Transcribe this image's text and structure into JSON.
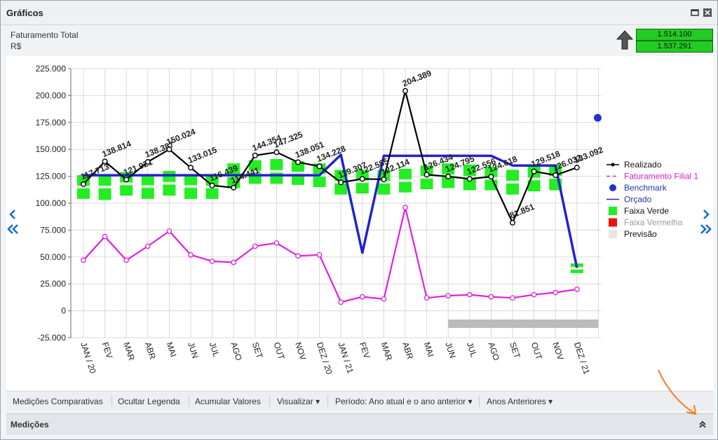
{
  "window": {
    "title": "Gráficos"
  },
  "header": {
    "subtitle": "Faturamento Total",
    "unit": "R$",
    "kpi_top": "1.514.100",
    "kpi_bottom": "1.537.291",
    "kpi_color": "#22cc22"
  },
  "toolbar": {
    "items": [
      "Medições Comparativas",
      "Ocultar Legenda",
      "Acumular Valores",
      "Visualizar",
      "Período: Ano atual e o ano anterior",
      "Anos Anteriores"
    ]
  },
  "footer": {
    "label": "Medições"
  },
  "chart_data": {
    "type": "line",
    "ylim": [
      -25000,
      225000
    ],
    "yticks": [
      -25000,
      0,
      25000,
      50000,
      75000,
      100000,
      125000,
      150000,
      175000,
      200000,
      225000
    ],
    "ytick_labels": [
      "-25.000",
      "0",
      "25.000",
      "50.000",
      "75.000",
      "100.000",
      "125.000",
      "150.000",
      "175.000",
      "200.000",
      "225.000"
    ],
    "categories": [
      "JAN / 20",
      "FEV",
      "MAR",
      "ABR",
      "MAI",
      "JUN",
      "JUL",
      "AGO",
      "SET",
      "OUT",
      "NOV",
      "DEZ / 20",
      "JAN / 21",
      "FEV",
      "MAR",
      "ABR",
      "MAI",
      "JUN",
      "JUL",
      "AGO",
      "SET",
      "OUT",
      "NOV",
      "DEZ / 21"
    ],
    "series": [
      {
        "name": "Realizado",
        "color": "#000000",
        "values": [
          117713,
          138814,
          121921,
          138387,
          150024,
          133015,
          116439,
          114441,
          144354,
          147325,
          138051,
          134228,
          119307,
          122585,
          122114,
          204389,
          126434,
          124795,
          122556,
          124618,
          81851,
          129518,
          126032,
          133092
        ],
        "labels": [
          "117.713",
          "138.814",
          "121.921",
          "138.387",
          "150.024",
          "133.015",
          "116.439",
          "114.441",
          "144.354",
          "147.325",
          "138.051",
          "134.228",
          "119.307",
          "122.585",
          "122.114",
          "204.389",
          "126.434",
          "124.795",
          "122.556",
          "124.618",
          "81.851",
          "129.518",
          "126.032",
          "133.092"
        ]
      },
      {
        "name": "Faturamento Filial 1",
        "color": "#e020e0",
        "values": [
          47000,
          69000,
          47000,
          60000,
          74000,
          52000,
          46000,
          45000,
          60000,
          63000,
          51000,
          52000,
          8000,
          13000,
          11000,
          96000,
          12000,
          14000,
          15000,
          13000,
          12000,
          15000,
          17000,
          20000
        ]
      },
      {
        "name": "Orçado",
        "color": "#2222cc",
        "values": [
          126000,
          126000,
          126000,
          126000,
          126000,
          126000,
          126000,
          126000,
          126000,
          126000,
          126000,
          126000,
          145000,
          54000,
          144000,
          144000,
          144000,
          144000,
          144000,
          144000,
          135000,
          135000,
          135000,
          40000
        ]
      }
    ],
    "faixa_verde": [
      [
        104000,
        126000
      ],
      [
        103000,
        127000
      ],
      [
        107000,
        129000
      ],
      [
        104000,
        127000
      ],
      [
        107000,
        130000
      ],
      [
        104000,
        127000
      ],
      [
        104000,
        126000
      ],
      [
        114000,
        137000
      ],
      [
        118000,
        140000
      ],
      [
        118000,
        141000
      ],
      [
        117000,
        139000
      ],
      [
        115000,
        137000
      ],
      [
        108000,
        131000
      ],
      [
        109000,
        131000
      ],
      [
        108000,
        131000
      ],
      [
        110000,
        132000
      ],
      [
        113000,
        135000
      ],
      [
        114000,
        137000
      ],
      [
        112000,
        136000
      ],
      [
        112000,
        134000
      ],
      [
        108000,
        131000
      ],
      [
        111000,
        134000
      ],
      [
        112000,
        136000
      ],
      [
        35000,
        44000
      ]
    ],
    "benchmark": {
      "index": 24,
      "value": 180000,
      "color": "#2233cc"
    },
    "previsao": {
      "from": 17,
      "to": 24,
      "value": -12000,
      "color": "#bbbbbb"
    },
    "legend": {
      "position": "right",
      "entries": [
        {
          "name": "Realizado",
          "color": "#000000"
        },
        {
          "name": "Faturamento Filial 1",
          "color": "#e020e0"
        },
        {
          "name": "Benchmark",
          "color": "#2233cc"
        },
        {
          "name": "Orçado",
          "color": "#2222cc"
        },
        {
          "name": "Faixa Verde",
          "color": "#22ee22"
        },
        {
          "name": "Faixa Vermelha",
          "color": "#ee1111"
        },
        {
          "name": "Previsão",
          "color": "#e6e6e6"
        }
      ]
    }
  }
}
